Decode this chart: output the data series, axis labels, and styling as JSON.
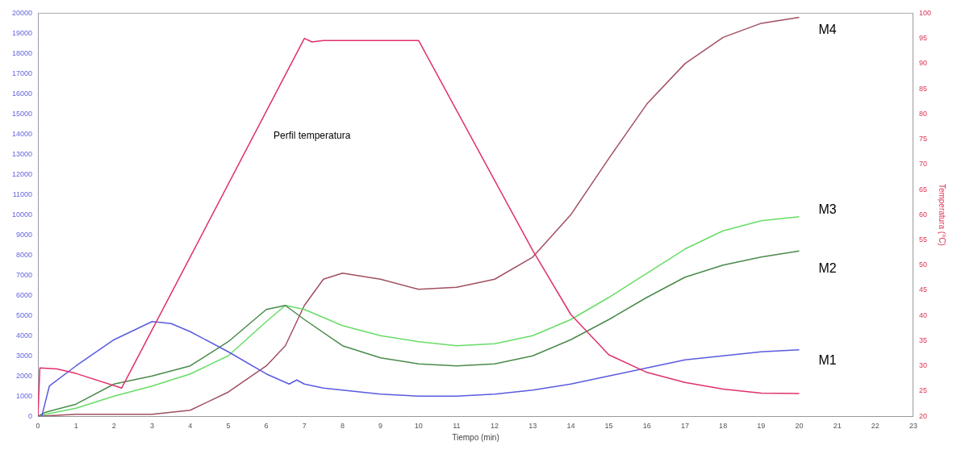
{
  "chart_data": {
    "type": "line",
    "xlabel": "Tiempo (min)",
    "y2label": "Temperatura (°C)",
    "xlim": [
      0,
      23
    ],
    "xticks": [
      0,
      1,
      2,
      3,
      4,
      5,
      6,
      7,
      8,
      9,
      10,
      11,
      12,
      13,
      14,
      15,
      16,
      17,
      18,
      19,
      20,
      21,
      22,
      23
    ],
    "ylim": [
      0,
      20000
    ],
    "yticks": [
      0,
      1000,
      2000,
      3000,
      4000,
      5000,
      6000,
      7000,
      8000,
      9000,
      10000,
      11000,
      12000,
      13000,
      14000,
      15000,
      16000,
      17000,
      18000,
      19000,
      20000
    ],
    "y2lim": [
      20,
      100
    ],
    "y2ticks": [
      20,
      25,
      30,
      35,
      40,
      45,
      50,
      55,
      60,
      65,
      70,
      75,
      80,
      85,
      90,
      95,
      100
    ],
    "grid": false,
    "legend": false,
    "marker": "none",
    "line_style": "solid",
    "series": [
      {
        "name": "Perfil temperatura",
        "color": "#e0306a",
        "axis": "y2",
        "x": [
          0,
          0.05,
          0.5,
          1,
          2.2,
          7,
          7.2,
          7.5,
          10,
          13,
          14,
          15,
          16,
          17,
          18,
          19,
          20
        ],
        "values": [
          20,
          29.6,
          29.4,
          28.5,
          25.6,
          95,
          94.3,
          94.6,
          94.6,
          52.9,
          40.2,
          32.2,
          28.7,
          26.7,
          25.4,
          24.6,
          24.5
        ]
      },
      {
        "name": "M1",
        "color": "#5a5ae0",
        "x": [
          0,
          0.1,
          0.3,
          1,
          2,
          3,
          3.5,
          4,
          5,
          6,
          6.6,
          6.8,
          7,
          7.5,
          8,
          9,
          10,
          11,
          12,
          13,
          14,
          15,
          16,
          17,
          18,
          19,
          20
        ],
        "values": [
          0,
          0,
          1500,
          2500,
          3800,
          4700,
          4600,
          4200,
          3200,
          2100,
          1600,
          1800,
          1600,
          1400,
          1300,
          1100,
          1000,
          1000,
          1100,
          1300,
          1600,
          2000,
          2400,
          2800,
          3000,
          3200,
          3300
        ]
      },
      {
        "name": "M2",
        "color": "#4a8a4a",
        "x": [
          0,
          0.2,
          1,
          2,
          3,
          4,
          5,
          6,
          6.5,
          7,
          8,
          9,
          10,
          11,
          12,
          13,
          14,
          15,
          16,
          17,
          18,
          19,
          20
        ],
        "values": [
          0,
          200,
          600,
          1600,
          2000,
          2500,
          3700,
          5300,
          5500,
          4800,
          3500,
          2900,
          2600,
          2500,
          2600,
          3000,
          3800,
          4800,
          5900,
          6900,
          7500,
          7900,
          8200
        ]
      },
      {
        "name": "M3",
        "color": "#66dd66",
        "x": [
          0,
          0.2,
          1,
          2,
          3,
          4,
          5,
          6,
          6.5,
          7,
          8,
          9,
          10,
          11,
          12,
          13,
          14,
          15,
          16,
          17,
          18,
          19,
          20
        ],
        "values": [
          0,
          100,
          400,
          1000,
          1500,
          2100,
          3000,
          4700,
          5500,
          5300,
          4500,
          4000,
          3700,
          3500,
          3600,
          4000,
          4800,
          5900,
          7100,
          8300,
          9200,
          9700,
          9900
        ]
      },
      {
        "name": "M4",
        "color": "#a05060",
        "x": [
          0,
          1,
          3,
          4,
          5,
          6,
          6.5,
          7,
          7.5,
          8,
          9,
          10,
          11,
          12,
          13,
          14,
          15,
          16,
          17,
          18,
          19,
          20
        ],
        "values": [
          0,
          100,
          100,
          300,
          1200,
          2500,
          3500,
          5500,
          6800,
          7100,
          6800,
          6300,
          6400,
          6800,
          7900,
          10000,
          12800,
          15500,
          17500,
          18800,
          19500,
          19800
        ]
      }
    ]
  }
}
